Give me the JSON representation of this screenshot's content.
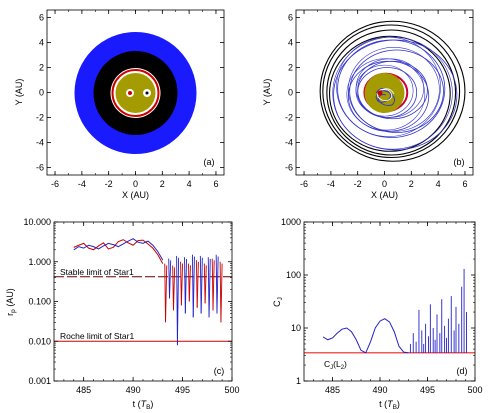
{
  "chart_data": [
    {
      "panel": "(a)",
      "type": "scatter",
      "xlabel": "X (AU)",
      "ylabel": "Y (AU)",
      "xlim": [
        -6.6,
        6.6
      ],
      "ylim": [
        -6.6,
        6.6
      ],
      "xticks": [
        -6,
        -4,
        -2,
        0,
        2,
        4,
        6
      ],
      "yticks": [
        -6,
        -4,
        -2,
        0,
        2,
        4,
        6
      ],
      "rings": [
        {
          "name": "circumbinary disk",
          "r_in": 2.8,
          "r_out": 4.0,
          "color": "#1a1aff"
        },
        {
          "name": "planet orbits",
          "r_in": 1.65,
          "r_out": 2.8,
          "color": "#000000"
        },
        {
          "name": "red orbit",
          "r": 1.5,
          "color": "#cc0000"
        },
        {
          "name": "star region",
          "r": 1.3,
          "color": "#a39b00"
        }
      ],
      "stars": [
        {
          "x": -0.35,
          "y": 0.0
        },
        {
          "x": 0.75,
          "y": 0.0
        }
      ],
      "colors": {
        "blue": "#1a1aff",
        "black": "#000000",
        "red": "#cc0000",
        "olive": "#a39b00",
        "white": "#ffffff"
      }
    },
    {
      "panel": "(b)",
      "type": "line",
      "xlabel": "X (AU)",
      "ylabel": "Y (AU)",
      "xlim": [
        -6.6,
        6.6
      ],
      "ylim": [
        -6.6,
        6.6
      ],
      "xticks": [
        -6,
        -4,
        -2,
        0,
        2,
        4,
        6
      ],
      "yticks": [
        -6,
        -4,
        -2,
        0,
        2,
        4,
        6
      ],
      "black_orbits": [
        {
          "a": 5.4,
          "b": 5.6,
          "cx": 0.6,
          "cy": 0.1
        },
        {
          "a": 5.1,
          "b": 5.3,
          "cx": 0.5,
          "cy": 0.1
        },
        {
          "a": 4.8,
          "b": 5.0,
          "cx": 0.5,
          "cy": 0.0
        },
        {
          "a": 4.5,
          "b": 4.6,
          "cx": 0.4,
          "cy": -0.1
        }
      ],
      "blue_orbits": [
        {
          "a": 4.6,
          "b": 4.4,
          "cx": 0.8,
          "cy": -0.2
        },
        {
          "a": 4.0,
          "b": 3.9,
          "cx": 0.5,
          "cy": 0.3
        },
        {
          "a": 3.5,
          "b": 3.3,
          "cx": 0.9,
          "cy": 0.1
        },
        {
          "a": 3.0,
          "b": 2.8,
          "cx": 0.3,
          "cy": -0.3
        },
        {
          "a": 2.6,
          "b": 2.3,
          "cx": 0.6,
          "cy": 0.2
        },
        {
          "a": 2.2,
          "b": 2.0,
          "cx": 0.2,
          "cy": 0.0
        }
      ],
      "red_orbit": {
        "a": 1.6,
        "b": 1.5,
        "cx": 0.1,
        "cy": 0.0
      },
      "star_region": {
        "r": 1.3
      },
      "stars": [
        {
          "x": -0.35,
          "y": 0.0
        }
      ],
      "colors": {
        "blue": "#3333cc",
        "black": "#000000",
        "red": "#cc0033",
        "olive": "#a39b00"
      }
    },
    {
      "panel": "(c)",
      "type": "line",
      "xlabel_main": "t (",
      "xlabel_sym": "T",
      "xlabel_sub": "B",
      "xlabel_end": ")",
      "ylabel_main": "r",
      "ylabel_sub": "p",
      "ylabel_unit": " (AU)",
      "xlim": [
        482,
        500
      ],
      "ylim_log": [
        0.001,
        10
      ],
      "xticks": [
        485,
        490,
        495,
        500
      ],
      "yticks": [
        0.001,
        0.01,
        0.1,
        1.0,
        10.0
      ],
      "ytick_labels": [
        "0.001",
        "0.010",
        "0.100",
        "1.000",
        "10.000"
      ],
      "stable_limit": {
        "value": 0.42,
        "label": "Stable limit of Star1"
      },
      "roche_limit": {
        "value": 0.01,
        "label": "Roche limit of Star1"
      },
      "series": [
        {
          "color": "#cc0000",
          "x": [
            484,
            484.5,
            485,
            485.5,
            486,
            486.5,
            487,
            487.5,
            488,
            488.5,
            489,
            489.5,
            490,
            490.5,
            491,
            491.5,
            492,
            492.5,
            493
          ],
          "y": [
            2.3,
            2.6,
            2.9,
            2.2,
            2.0,
            2.5,
            3.0,
            2.1,
            2.3,
            3.2,
            3.6,
            3.0,
            2.6,
            3.4,
            3.5,
            2.8,
            2.2,
            1.5,
            0.9
          ]
        },
        {
          "color": "#2222cc",
          "x": [
            484,
            484.5,
            485,
            485.5,
            486,
            486.5,
            487,
            487.5,
            488,
            488.5,
            489,
            489.5,
            490,
            490.5,
            491,
            491.5,
            492,
            492.5,
            493
          ],
          "y": [
            2.0,
            2.4,
            2.2,
            2.6,
            2.4,
            2.1,
            2.5,
            2.9,
            2.7,
            2.4,
            2.8,
            3.3,
            3.8,
            3.1,
            2.9,
            3.3,
            2.6,
            1.8,
            1.1
          ]
        }
      ]
    },
    {
      "panel": "(d)",
      "type": "line",
      "xlabel_main": "t (",
      "xlabel_sym": "T",
      "xlabel_sub": "B",
      "xlabel_end": ")",
      "ylabel_main": "C",
      "ylabel_sub": "J",
      "xlim": [
        482,
        500
      ],
      "ylim_log": [
        1,
        1000
      ],
      "xticks": [
        485,
        490,
        495,
        500
      ],
      "yticks": [
        1,
        10,
        100,
        1000
      ],
      "ytick_labels": [
        "1",
        "10",
        "100",
        "1000"
      ],
      "cj_line": {
        "value": 3.4,
        "label_main": "C",
        "label_sub": "J",
        "label_end": "(L",
        "label_sub2": "2",
        "label_close": ")"
      },
      "series": [
        {
          "color": "#2222cc",
          "x": [
            484,
            484.5,
            485,
            485.5,
            486,
            486.5,
            487,
            487.5,
            488,
            488.5,
            489,
            489.5,
            490,
            490.5,
            491,
            491.5,
            492,
            492.5,
            493
          ],
          "y": [
            6.8,
            6.0,
            6.5,
            8.0,
            9.5,
            10.0,
            8.5,
            6.0,
            3.8,
            3.4,
            5.5,
            10.0,
            13.5,
            15.0,
            13.0,
            8.5,
            4.5,
            3.5,
            3.4
          ]
        }
      ],
      "spikes": [
        {
          "x": 493.2,
          "y": 5.0
        },
        {
          "x": 493.5,
          "y": 8.0
        },
        {
          "x": 493.8,
          "y": 5.5
        },
        {
          "x": 494.1,
          "y": 22.0
        },
        {
          "x": 494.4,
          "y": 9.0
        },
        {
          "x": 494.6,
          "y": 5.0
        },
        {
          "x": 494.8,
          "y": 12.0
        },
        {
          "x": 495.1,
          "y": 7.0
        },
        {
          "x": 495.3,
          "y": 28.0
        },
        {
          "x": 495.6,
          "y": 10.0
        },
        {
          "x": 495.8,
          "y": 6.0
        },
        {
          "x": 496.0,
          "y": 18.0
        },
        {
          "x": 496.3,
          "y": 8.0
        },
        {
          "x": 496.5,
          "y": 35.0
        },
        {
          "x": 496.8,
          "y": 11.0
        },
        {
          "x": 497.0,
          "y": 6.5
        },
        {
          "x": 497.2,
          "y": 15.0
        },
        {
          "x": 497.5,
          "y": 40.0
        },
        {
          "x": 497.8,
          "y": 9.0
        },
        {
          "x": 498.0,
          "y": 25.0
        },
        {
          "x": 498.3,
          "y": 12.0
        },
        {
          "x": 498.6,
          "y": 60.0
        },
        {
          "x": 498.85,
          "y": 130.0
        },
        {
          "x": 499.1,
          "y": 20.0
        }
      ]
    }
  ]
}
